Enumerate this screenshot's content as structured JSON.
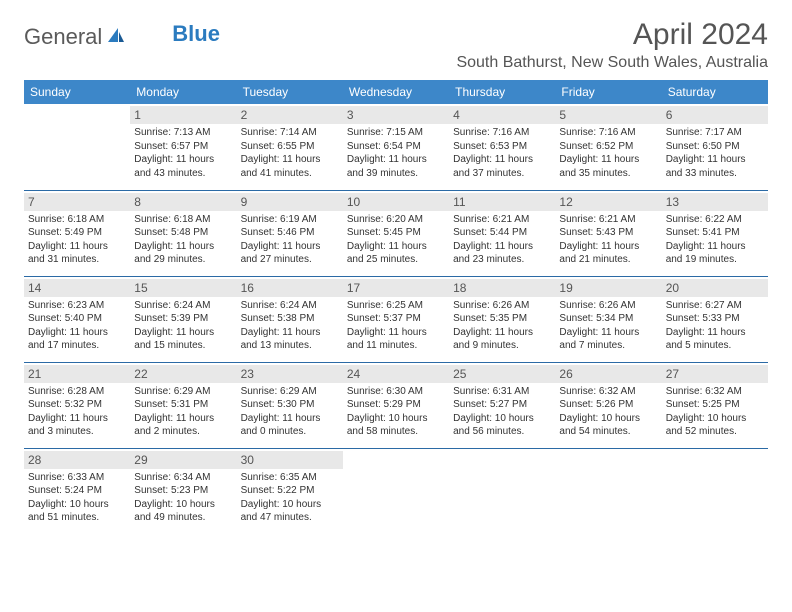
{
  "brand": {
    "part1": "General",
    "part2": "Blue"
  },
  "title": "April 2024",
  "location": "South Bathurst, New South Wales, Australia",
  "colors": {
    "header_bg": "#3d87c9",
    "header_text": "#ffffff",
    "daynum_bg": "#e8e8e8",
    "rule": "#2b6aa5",
    "body_text": "#333333",
    "title_text": "#555555"
  },
  "dayNames": [
    "Sunday",
    "Monday",
    "Tuesday",
    "Wednesday",
    "Thursday",
    "Friday",
    "Saturday"
  ],
  "weeks": [
    [
      {
        "day": "",
        "sunrise": "",
        "sunset": "",
        "daylight": ""
      },
      {
        "day": "1",
        "sunrise": "Sunrise: 7:13 AM",
        "sunset": "Sunset: 6:57 PM",
        "daylight": "Daylight: 11 hours and 43 minutes."
      },
      {
        "day": "2",
        "sunrise": "Sunrise: 7:14 AM",
        "sunset": "Sunset: 6:55 PM",
        "daylight": "Daylight: 11 hours and 41 minutes."
      },
      {
        "day": "3",
        "sunrise": "Sunrise: 7:15 AM",
        "sunset": "Sunset: 6:54 PM",
        "daylight": "Daylight: 11 hours and 39 minutes."
      },
      {
        "day": "4",
        "sunrise": "Sunrise: 7:16 AM",
        "sunset": "Sunset: 6:53 PM",
        "daylight": "Daylight: 11 hours and 37 minutes."
      },
      {
        "day": "5",
        "sunrise": "Sunrise: 7:16 AM",
        "sunset": "Sunset: 6:52 PM",
        "daylight": "Daylight: 11 hours and 35 minutes."
      },
      {
        "day": "6",
        "sunrise": "Sunrise: 7:17 AM",
        "sunset": "Sunset: 6:50 PM",
        "daylight": "Daylight: 11 hours and 33 minutes."
      }
    ],
    [
      {
        "day": "7",
        "sunrise": "Sunrise: 6:18 AM",
        "sunset": "Sunset: 5:49 PM",
        "daylight": "Daylight: 11 hours and 31 minutes."
      },
      {
        "day": "8",
        "sunrise": "Sunrise: 6:18 AM",
        "sunset": "Sunset: 5:48 PM",
        "daylight": "Daylight: 11 hours and 29 minutes."
      },
      {
        "day": "9",
        "sunrise": "Sunrise: 6:19 AM",
        "sunset": "Sunset: 5:46 PM",
        "daylight": "Daylight: 11 hours and 27 minutes."
      },
      {
        "day": "10",
        "sunrise": "Sunrise: 6:20 AM",
        "sunset": "Sunset: 5:45 PM",
        "daylight": "Daylight: 11 hours and 25 minutes."
      },
      {
        "day": "11",
        "sunrise": "Sunrise: 6:21 AM",
        "sunset": "Sunset: 5:44 PM",
        "daylight": "Daylight: 11 hours and 23 minutes."
      },
      {
        "day": "12",
        "sunrise": "Sunrise: 6:21 AM",
        "sunset": "Sunset: 5:43 PM",
        "daylight": "Daylight: 11 hours and 21 minutes."
      },
      {
        "day": "13",
        "sunrise": "Sunrise: 6:22 AM",
        "sunset": "Sunset: 5:41 PM",
        "daylight": "Daylight: 11 hours and 19 minutes."
      }
    ],
    [
      {
        "day": "14",
        "sunrise": "Sunrise: 6:23 AM",
        "sunset": "Sunset: 5:40 PM",
        "daylight": "Daylight: 11 hours and 17 minutes."
      },
      {
        "day": "15",
        "sunrise": "Sunrise: 6:24 AM",
        "sunset": "Sunset: 5:39 PM",
        "daylight": "Daylight: 11 hours and 15 minutes."
      },
      {
        "day": "16",
        "sunrise": "Sunrise: 6:24 AM",
        "sunset": "Sunset: 5:38 PM",
        "daylight": "Daylight: 11 hours and 13 minutes."
      },
      {
        "day": "17",
        "sunrise": "Sunrise: 6:25 AM",
        "sunset": "Sunset: 5:37 PM",
        "daylight": "Daylight: 11 hours and 11 minutes."
      },
      {
        "day": "18",
        "sunrise": "Sunrise: 6:26 AM",
        "sunset": "Sunset: 5:35 PM",
        "daylight": "Daylight: 11 hours and 9 minutes."
      },
      {
        "day": "19",
        "sunrise": "Sunrise: 6:26 AM",
        "sunset": "Sunset: 5:34 PM",
        "daylight": "Daylight: 11 hours and 7 minutes."
      },
      {
        "day": "20",
        "sunrise": "Sunrise: 6:27 AM",
        "sunset": "Sunset: 5:33 PM",
        "daylight": "Daylight: 11 hours and 5 minutes."
      }
    ],
    [
      {
        "day": "21",
        "sunrise": "Sunrise: 6:28 AM",
        "sunset": "Sunset: 5:32 PM",
        "daylight": "Daylight: 11 hours and 3 minutes."
      },
      {
        "day": "22",
        "sunrise": "Sunrise: 6:29 AM",
        "sunset": "Sunset: 5:31 PM",
        "daylight": "Daylight: 11 hours and 2 minutes."
      },
      {
        "day": "23",
        "sunrise": "Sunrise: 6:29 AM",
        "sunset": "Sunset: 5:30 PM",
        "daylight": "Daylight: 11 hours and 0 minutes."
      },
      {
        "day": "24",
        "sunrise": "Sunrise: 6:30 AM",
        "sunset": "Sunset: 5:29 PM",
        "daylight": "Daylight: 10 hours and 58 minutes."
      },
      {
        "day": "25",
        "sunrise": "Sunrise: 6:31 AM",
        "sunset": "Sunset: 5:27 PM",
        "daylight": "Daylight: 10 hours and 56 minutes."
      },
      {
        "day": "26",
        "sunrise": "Sunrise: 6:32 AM",
        "sunset": "Sunset: 5:26 PM",
        "daylight": "Daylight: 10 hours and 54 minutes."
      },
      {
        "day": "27",
        "sunrise": "Sunrise: 6:32 AM",
        "sunset": "Sunset: 5:25 PM",
        "daylight": "Daylight: 10 hours and 52 minutes."
      }
    ],
    [
      {
        "day": "28",
        "sunrise": "Sunrise: 6:33 AM",
        "sunset": "Sunset: 5:24 PM",
        "daylight": "Daylight: 10 hours and 51 minutes."
      },
      {
        "day": "29",
        "sunrise": "Sunrise: 6:34 AM",
        "sunset": "Sunset: 5:23 PM",
        "daylight": "Daylight: 10 hours and 49 minutes."
      },
      {
        "day": "30",
        "sunrise": "Sunrise: 6:35 AM",
        "sunset": "Sunset: 5:22 PM",
        "daylight": "Daylight: 10 hours and 47 minutes."
      },
      {
        "day": "",
        "sunrise": "",
        "sunset": "",
        "daylight": ""
      },
      {
        "day": "",
        "sunrise": "",
        "sunset": "",
        "daylight": ""
      },
      {
        "day": "",
        "sunrise": "",
        "sunset": "",
        "daylight": ""
      },
      {
        "day": "",
        "sunrise": "",
        "sunset": "",
        "daylight": ""
      }
    ]
  ]
}
